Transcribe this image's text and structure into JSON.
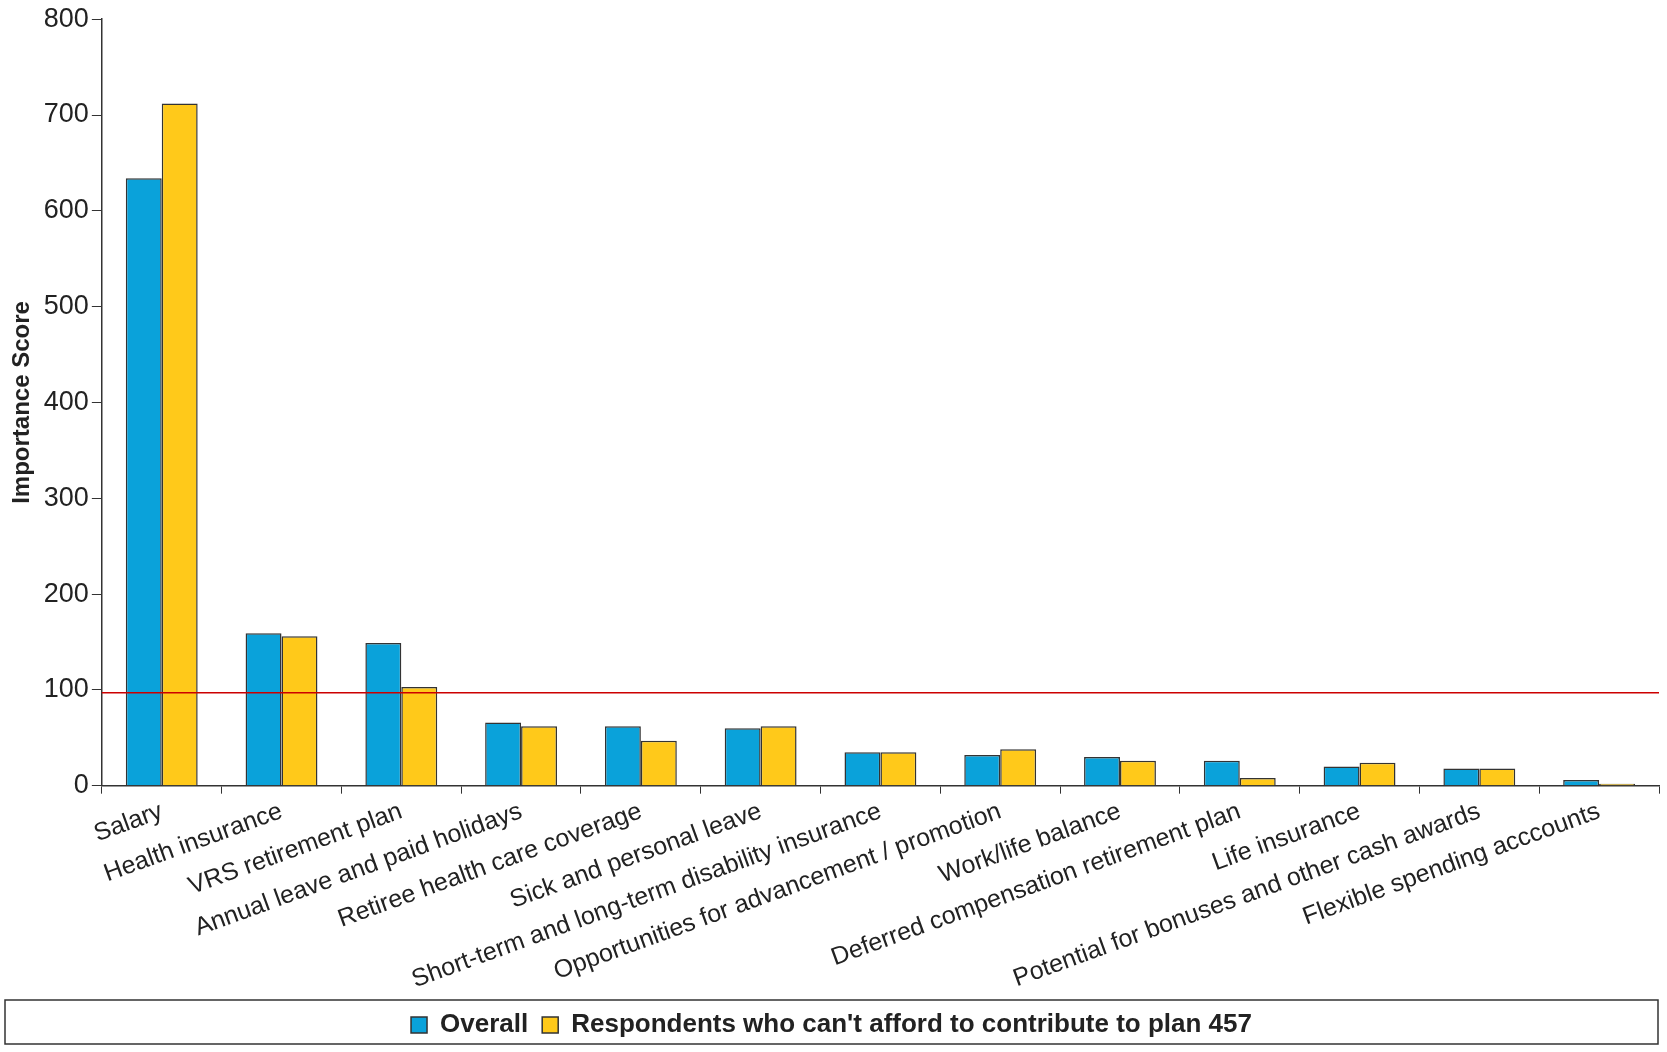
{
  "chart_data": {
    "type": "bar",
    "ylabel": "Importance Score",
    "categories": [
      "Salary",
      "Health insurance",
      "VRS retirement plan",
      "Annual leave and paid holidays",
      "Retiree health care coverage",
      "Sick and personal leave",
      "Short-term and long-term disability insurance",
      "Opportunities for advancement / promotion",
      "Work/life balance",
      "Deferred compensation retirement plan",
      "Life insurance",
      "Potential for bonuses and other cash awards",
      "Flexible spending acccounts"
    ],
    "series": [
      {
        "name": "Overall",
        "color": "#0aa2da",
        "values": [
          634,
          159,
          149,
          66,
          62,
          60,
          35,
          32,
          30,
          26,
          20,
          18,
          6
        ]
      },
      {
        "name": "Respondents who can't afford to contribute to plan 457",
        "color": "#ffc91a",
        "values": [
          712,
          156,
          103,
          62,
          47,
          62,
          35,
          38,
          26,
          8,
          24,
          18,
          2
        ]
      }
    ],
    "ylim": [
      0,
      800
    ],
    "yticks": [
      0,
      100,
      200,
      300,
      400,
      500,
      600,
      700,
      800
    ],
    "grid": false,
    "legend": "bottom",
    "ref_lines": [
      {
        "axis": "y",
        "value": 97,
        "color": "#cc0000"
      }
    ]
  }
}
